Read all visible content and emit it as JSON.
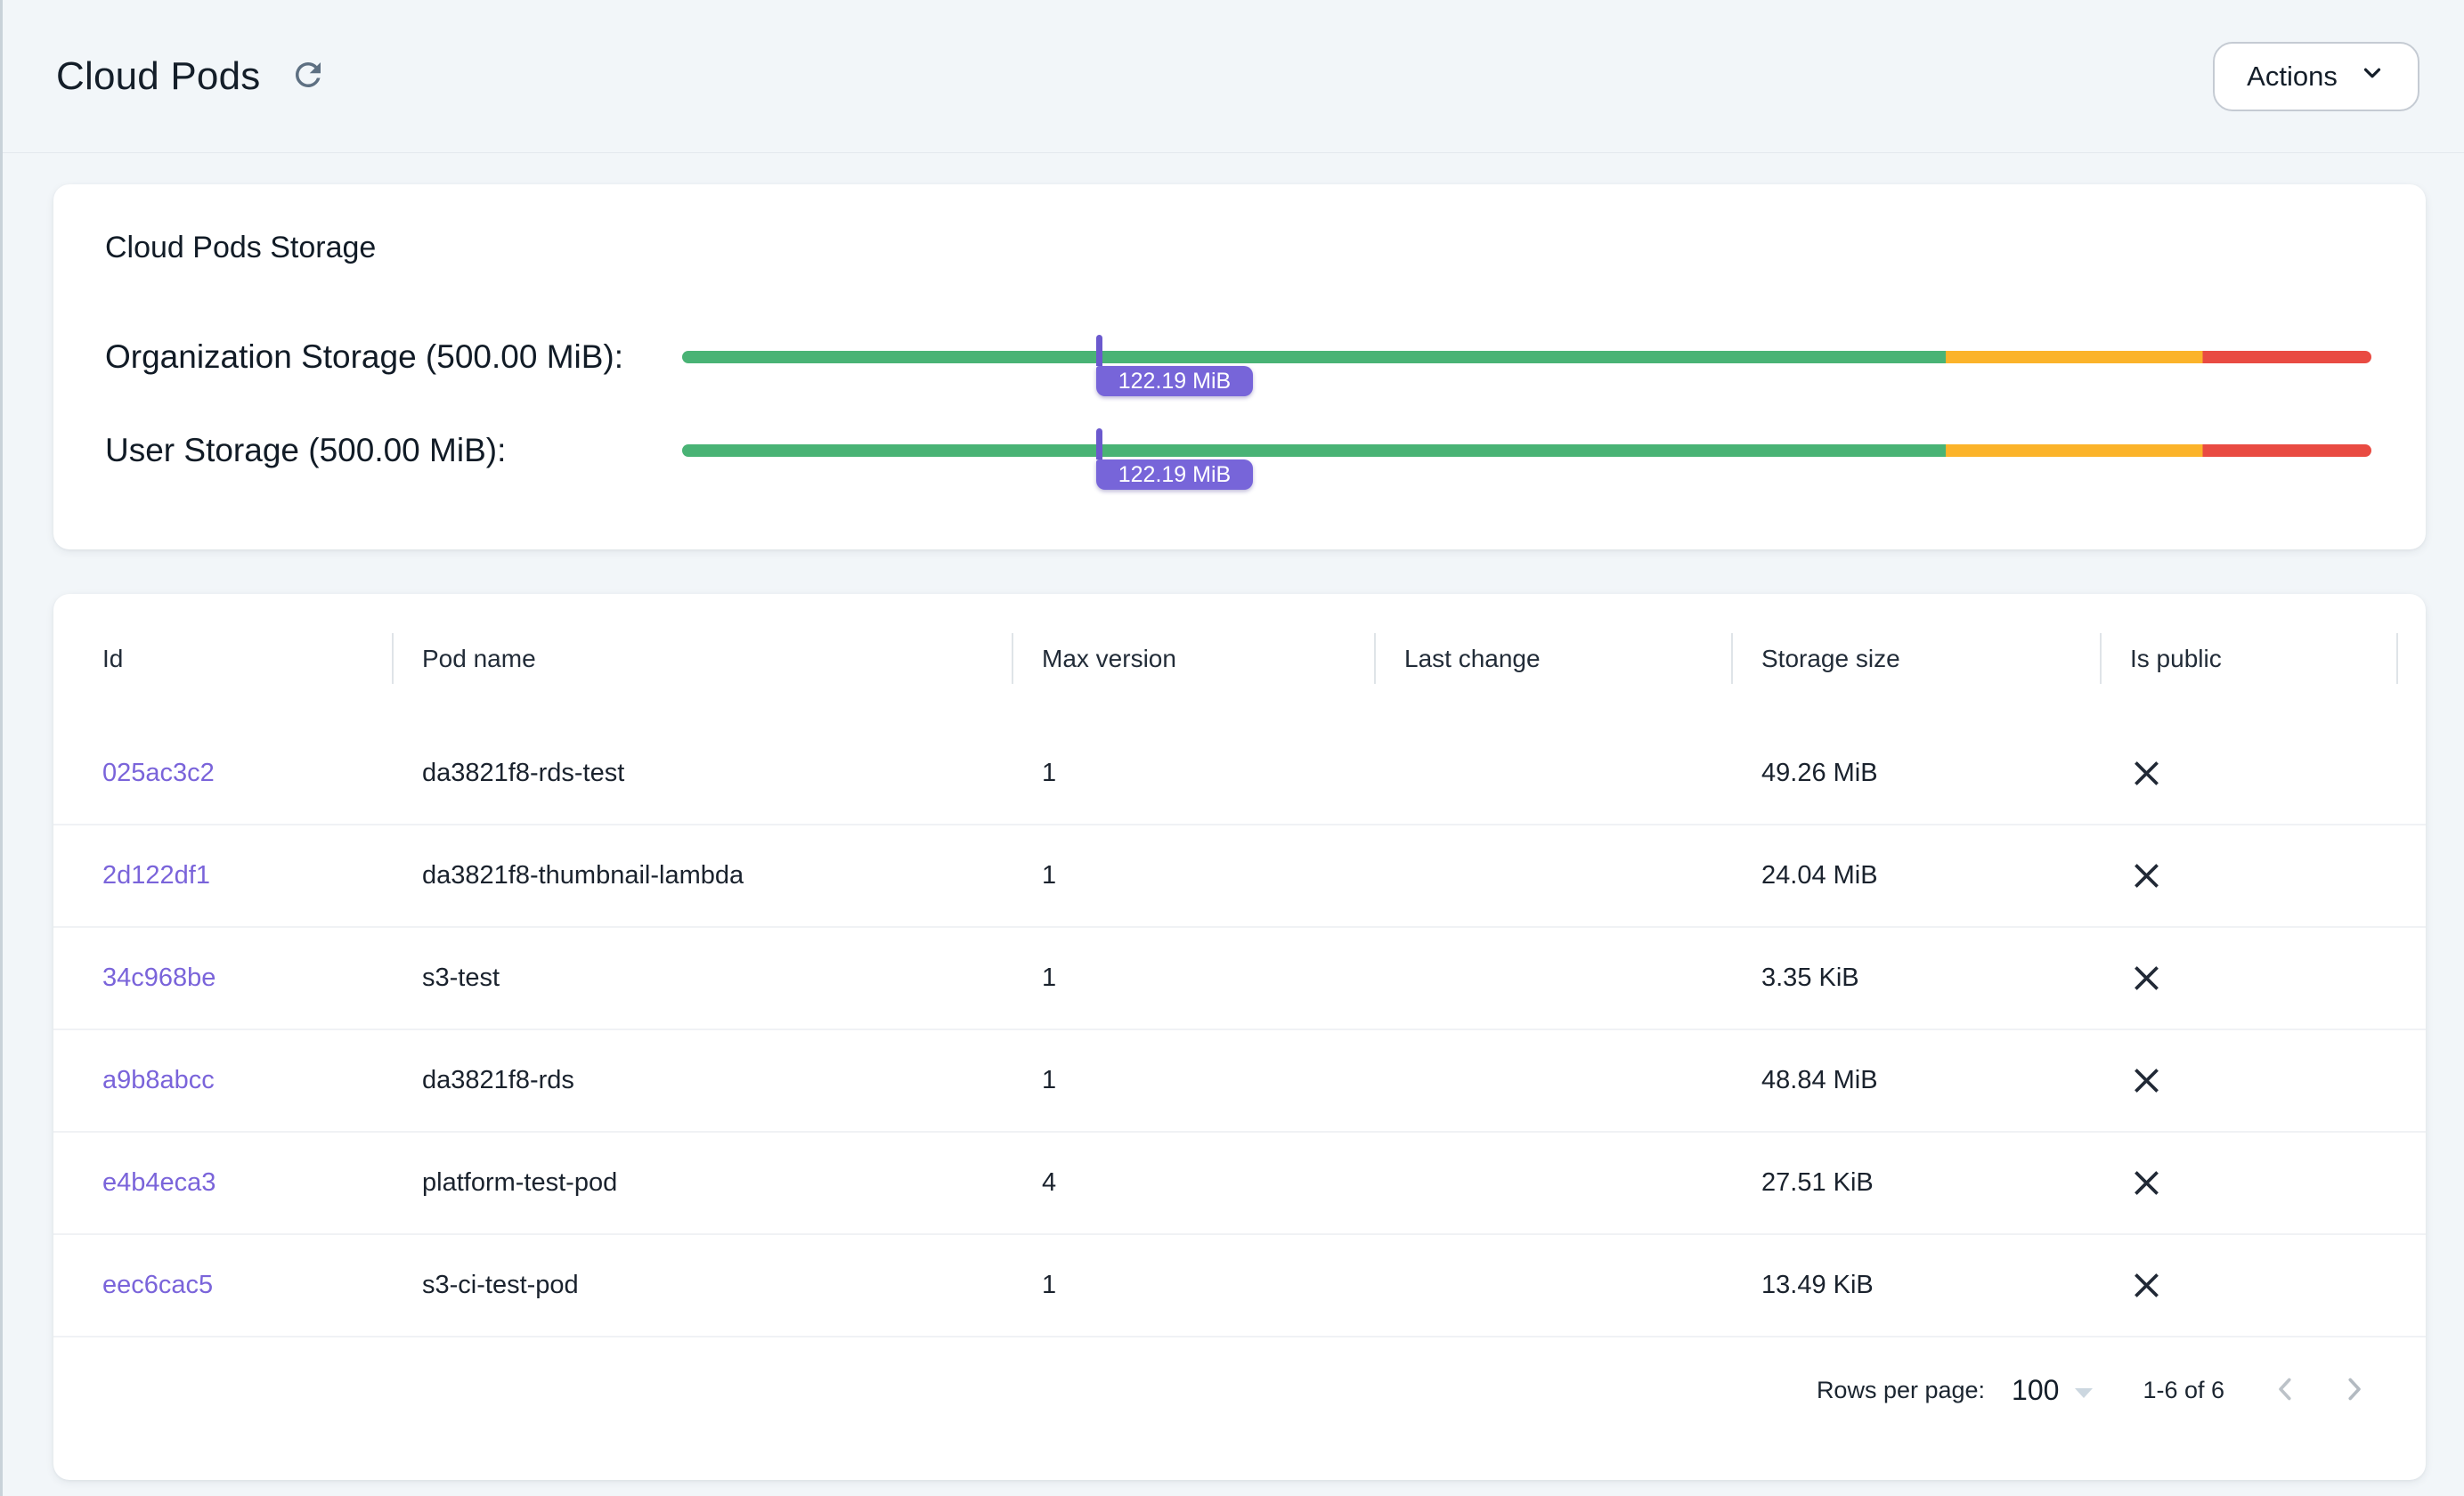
{
  "header": {
    "title": "Cloud Pods",
    "refresh_icon": "refresh-icon",
    "actions_label": "Actions"
  },
  "storage_card": {
    "title": "Cloud Pods Storage",
    "bars": [
      {
        "label": "Organization Storage (500.00 MiB):",
        "value_label": "122.19 MiB",
        "marker_percent": 24.5
      },
      {
        "label": "User Storage (500.00 MiB):",
        "value_label": "122.19 MiB",
        "marker_percent": 24.5
      }
    ],
    "scale": {
      "ok_until_percent": 74.8,
      "warn_until_percent": 90
    },
    "colors": {
      "ok": "#49b375",
      "warn": "#fbb32a",
      "danger": "#e94b42",
      "marker": "#6b59ce",
      "badge": "#7765d9"
    }
  },
  "table": {
    "columns": [
      "Id",
      "Pod name",
      "Max version",
      "Last change",
      "Storage size",
      "Is public"
    ],
    "rows": [
      {
        "id": "025ac3c2",
        "pod_name": "da3821f8-rds-test",
        "max_version": "1",
        "last_change": "",
        "storage_size": "49.26 MiB",
        "is_public": false
      },
      {
        "id": "2d122df1",
        "pod_name": "da3821f8-thumbnail-lambda",
        "max_version": "1",
        "last_change": "",
        "storage_size": "24.04 MiB",
        "is_public": false
      },
      {
        "id": "34c968be",
        "pod_name": "s3-test",
        "max_version": "1",
        "last_change": "",
        "storage_size": "3.35 KiB",
        "is_public": false
      },
      {
        "id": "a9b8abcc",
        "pod_name": "da3821f8-rds",
        "max_version": "1",
        "last_change": "",
        "storage_size": "48.84 MiB",
        "is_public": false
      },
      {
        "id": "e4b4eca3",
        "pod_name": "platform-test-pod",
        "max_version": "4",
        "last_change": "",
        "storage_size": "27.51 KiB",
        "is_public": false
      },
      {
        "id": "eec6cac5",
        "pod_name": "s3-ci-test-pod",
        "max_version": "1",
        "last_change": "",
        "storage_size": "13.49 KiB",
        "is_public": false
      }
    ],
    "pagination": {
      "rows_per_page_label": "Rows per page:",
      "rows_per_page": "100",
      "range_label": "1-6 of 6"
    }
  }
}
